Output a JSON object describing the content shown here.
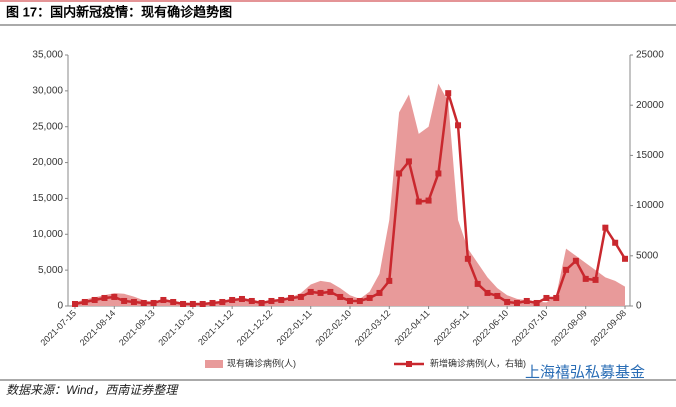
{
  "chart_data": {
    "type": "combo",
    "title": "图 17：国内新冠疫情：现有确诊趋势图",
    "source": "数据来源：Wind，西南证券整理",
    "watermark": "上海禧弘私募基金",
    "categories": [
      "2021-07-15",
      null,
      null,
      null,
      "2021-08-14",
      null,
      null,
      null,
      "2021-09-13",
      null,
      null,
      null,
      "2021-10-13",
      null,
      null,
      null,
      "2021-11-12",
      null,
      null,
      null,
      "2021-12-12",
      null,
      null,
      null,
      "2022-01-11",
      null,
      null,
      null,
      "2022-02-10",
      null,
      null,
      null,
      "2022-03-12",
      null,
      null,
      null,
      "2022-04-11",
      null,
      null,
      null,
      "2022-05-11",
      null,
      null,
      null,
      "2022-06-10",
      null,
      null,
      null,
      "2022-07-10",
      null,
      null,
      null,
      "2022-08-09",
      null,
      null,
      null,
      "2022-09-08"
    ],
    "series": [
      {
        "name": "现有确诊病例(人)",
        "type": "area",
        "color": "#e89a9a",
        "values": [
          500,
          900,
          1200,
          1500,
          1800,
          1700,
          1300,
          800,
          600,
          800,
          700,
          500,
          400,
          300,
          300,
          400,
          800,
          900,
          800,
          600,
          700,
          900,
          1200,
          1800,
          3000,
          3500,
          3300,
          2500,
          1500,
          1000,
          2000,
          4500,
          12000,
          27000,
          29500,
          24000,
          25000,
          31000,
          28500,
          12000,
          8000,
          6000,
          4000,
          2500,
          1500,
          1000,
          800,
          600,
          500,
          1500,
          8000,
          7000,
          6000,
          5000,
          4000,
          3500,
          2700
        ]
      },
      {
        "name": "新增确诊病例(人，右轴)",
        "type": "line",
        "axis": "y2",
        "color": "#c9282e",
        "values": [
          200,
          400,
          600,
          800,
          900,
          500,
          400,
          300,
          300,
          600,
          400,
          200,
          200,
          200,
          300,
          400,
          600,
          700,
          500,
          300,
          500,
          600,
          800,
          900,
          1400,
          1300,
          1400,
          900,
          500,
          500,
          800,
          1300,
          2500,
          13200,
          14400,
          10400,
          10500,
          13200,
          21200,
          18000,
          4700,
          2200,
          1300,
          1000,
          400,
          300,
          500,
          300,
          800,
          800,
          3600,
          4500,
          2700,
          2600,
          7800,
          6300,
          4700
        ]
      }
    ],
    "ylim": [
      0,
      35000
    ],
    "yticks": [
      0,
      {
        "value": 5000,
        "label": "5,000"
      },
      {
        "value": 10000,
        "label": "10,000"
      },
      {
        "value": 15000,
        "label": "15,000"
      },
      {
        "value": 20000,
        "label": "20,000"
      },
      {
        "value": 25000,
        "label": "25,000"
      },
      {
        "value": 30000,
        "label": "30,000"
      },
      {
        "value": 35000,
        "label": "35,000"
      }
    ],
    "y2lim": [
      0,
      25000
    ],
    "y2ticks": [
      0,
      5000,
      10000,
      15000,
      20000,
      25000
    ]
  }
}
